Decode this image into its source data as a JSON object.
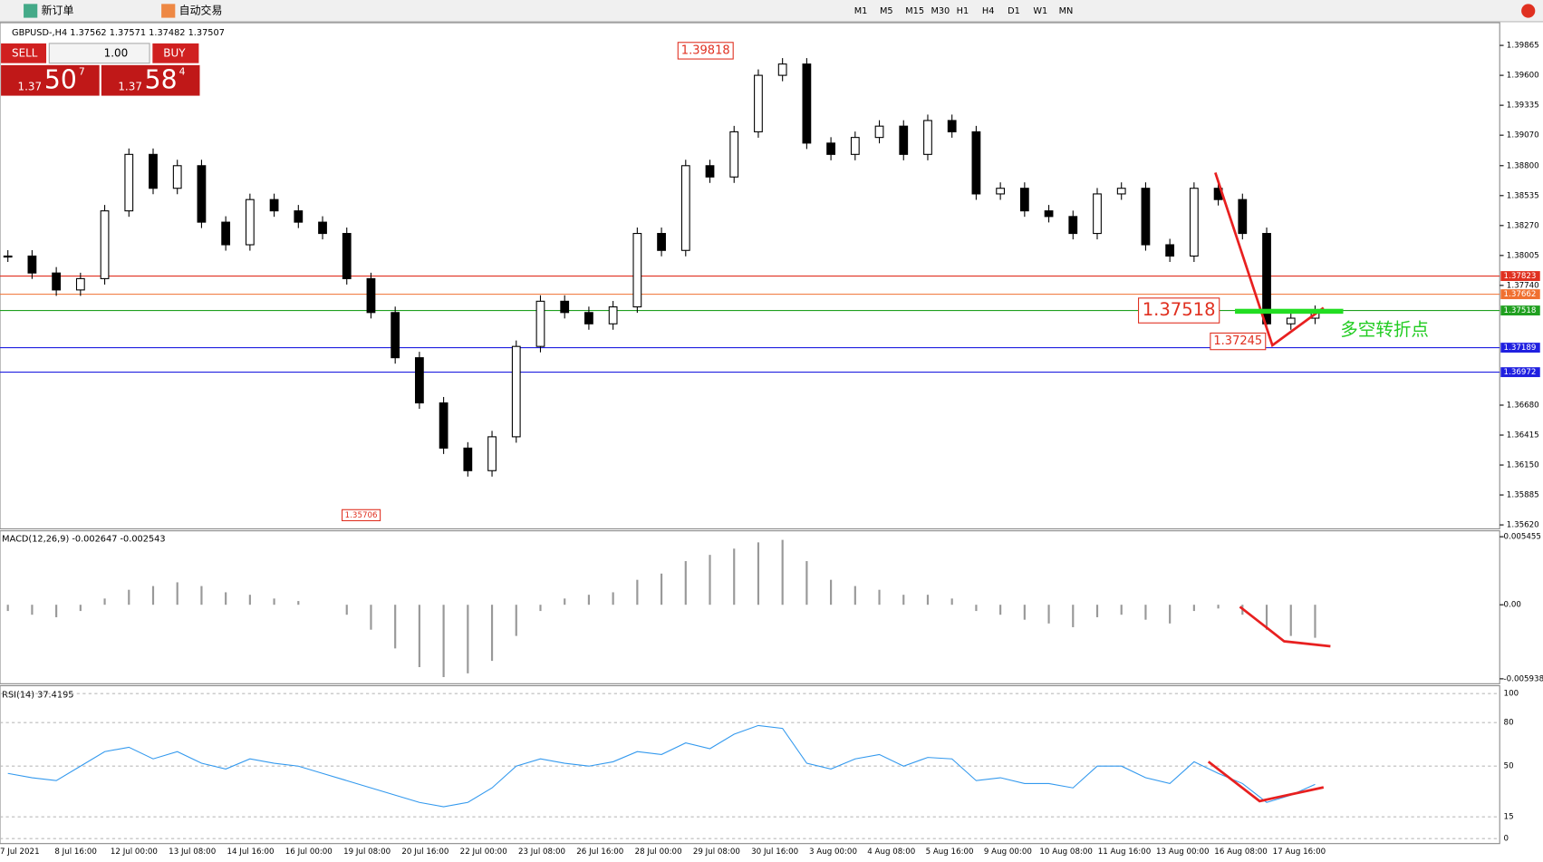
{
  "toolbar": {
    "new_order": "新订单",
    "auto_trade": "自动交易",
    "timeframes": [
      "M1",
      "M5",
      "M15",
      "M30",
      "H1",
      "H4",
      "D1",
      "W1",
      "MN"
    ]
  },
  "symbol_info": "GBPUSD-,H4  1.37562 1.37571 1.37482 1.37507",
  "trade_panel": {
    "sell": "SELL",
    "buy": "BUY",
    "lot": "1.00",
    "sell_big": "1.37",
    "sell_main": "50",
    "sell_sup": "7",
    "buy_big": "1.37",
    "buy_main": "58",
    "buy_sup": "4"
  },
  "price_chart": {
    "ylim": [
      1.3562,
      1.39865
    ],
    "yticks": [
      {
        "value": 1.39865,
        "label": "1.39865"
      },
      {
        "value": 1.396,
        "label": "1.39600"
      },
      {
        "value": 1.39335,
        "label": "1.39335"
      },
      {
        "value": 1.3907,
        "label": "1.39070"
      },
      {
        "value": 1.388,
        "label": "1.38800"
      },
      {
        "value": 1.38535,
        "label": "1.38535"
      },
      {
        "value": 1.3827,
        "label": "1.38270"
      },
      {
        "value": 1.38005,
        "label": "1.38005"
      },
      {
        "value": 1.3774,
        "label": "1.37740"
      },
      {
        "value": 1.3668,
        "label": "1.36680"
      },
      {
        "value": 1.36415,
        "label": "1.36415"
      },
      {
        "value": 1.3615,
        "label": "1.36150"
      },
      {
        "value": 1.35885,
        "label": "1.35885"
      },
      {
        "value": 1.3562,
        "label": "1.35620"
      }
    ],
    "closes": [
      1.38,
      1.3785,
      1.377,
      1.378,
      1.384,
      1.389,
      1.386,
      1.388,
      1.383,
      1.381,
      1.385,
      1.384,
      1.383,
      1.382,
      1.378,
      1.375,
      1.371,
      1.367,
      1.363,
      1.361,
      1.364,
      1.372,
      1.376,
      1.375,
      1.374,
      1.3755,
      1.382,
      1.3805,
      1.388,
      1.387,
      1.391,
      1.396,
      1.397,
      1.39,
      1.389,
      1.3905,
      1.3915,
      1.389,
      1.392,
      1.391,
      1.3855,
      1.386,
      1.384,
      1.3835,
      1.382,
      1.3855,
      1.386,
      1.381,
      1.38,
      1.386,
      1.385,
      1.382,
      1.374,
      1.3745,
      1.3751
    ],
    "levels": [
      {
        "value": 1.37823,
        "label": "1.37823",
        "color": "#e03020"
      },
      {
        "value": 1.37662,
        "label": "1.37662",
        "color": "#f07030"
      },
      {
        "value": 1.37518,
        "label": "1.37518",
        "color": "#20a020"
      },
      {
        "value": 1.37189,
        "label": "1.37189",
        "color": "#2020e0"
      },
      {
        "value": 1.36972,
        "label": "1.36972",
        "color": "#2020e0"
      }
    ],
    "annotations": [
      {
        "value": 1.39818,
        "label": "1.39818"
      },
      {
        "value": 1.35706,
        "label": "1.35706"
      },
      {
        "value": 1.37518,
        "label": "1.37518"
      },
      {
        "value": 1.37245,
        "label": "1.37245"
      }
    ],
    "note": "多空转折点"
  },
  "macd": {
    "label": "MACD(12,26,9) -0.002647 -0.002543",
    "ylim": [
      -0.005938,
      0.005455
    ],
    "yticks": [
      0.005455,
      {
        "value": 0,
        "label": "0.00"
      },
      -0.005938
    ],
    "values": [
      -0.0005,
      -0.0008,
      -0.001,
      -0.0005,
      0.0005,
      0.0012,
      0.0015,
      0.0018,
      0.0015,
      0.001,
      0.0008,
      0.0005,
      0.0003,
      0,
      -0.0008,
      -0.002,
      -0.0035,
      -0.005,
      -0.0058,
      -0.0055,
      -0.0045,
      -0.0025,
      -0.0005,
      0.0005,
      0.0008,
      0.001,
      0.002,
      0.0025,
      0.0035,
      0.004,
      0.0045,
      0.005,
      0.0052,
      0.0035,
      0.002,
      0.0015,
      0.0012,
      0.0008,
      0.0008,
      0.0005,
      -0.0005,
      -0.0008,
      -0.0012,
      -0.0015,
      -0.0018,
      -0.001,
      -0.0008,
      -0.0012,
      -0.0015,
      -0.0005,
      -0.0003,
      -0.0008,
      -0.002,
      -0.0025,
      -0.002647
    ]
  },
  "rsi": {
    "label": "RSI(14) 37.4195",
    "ylim": [
      0,
      100
    ],
    "yticks": [
      100,
      80,
      50,
      15,
      0
    ],
    "values": [
      45,
      42,
      40,
      50,
      60,
      63,
      55,
      60,
      52,
      48,
      55,
      52,
      50,
      45,
      40,
      35,
      30,
      25,
      22,
      25,
      35,
      50,
      55,
      52,
      50,
      53,
      60,
      58,
      66,
      62,
      72,
      78,
      76,
      52,
      48,
      55,
      58,
      50,
      56,
      55,
      40,
      42,
      38,
      38,
      35,
      50,
      50,
      42,
      38,
      53,
      45,
      38,
      25,
      30,
      37.4195
    ]
  },
  "dates": [
    "7 Jul 2021",
    "8 Jul 16:00",
    "12 Jul 00:00",
    "13 Jul 08:00",
    "14 Jul 16:00",
    "16 Jul 00:00",
    "19 Jul 08:00",
    "20 Jul 16:00",
    "22 Jul 00:00",
    "23 Jul 08:00",
    "26 Jul 16:00",
    "28 Jul 00:00",
    "29 Jul 08:00",
    "30 Jul 16:00",
    "3 Aug 00:00",
    "4 Aug 08:00",
    "5 Aug 16:00",
    "9 Aug 00:00",
    "10 Aug 08:00",
    "11 Aug 16:00",
    "13 Aug 00:00",
    "16 Aug 08:00",
    "17 Aug 16:00"
  ]
}
